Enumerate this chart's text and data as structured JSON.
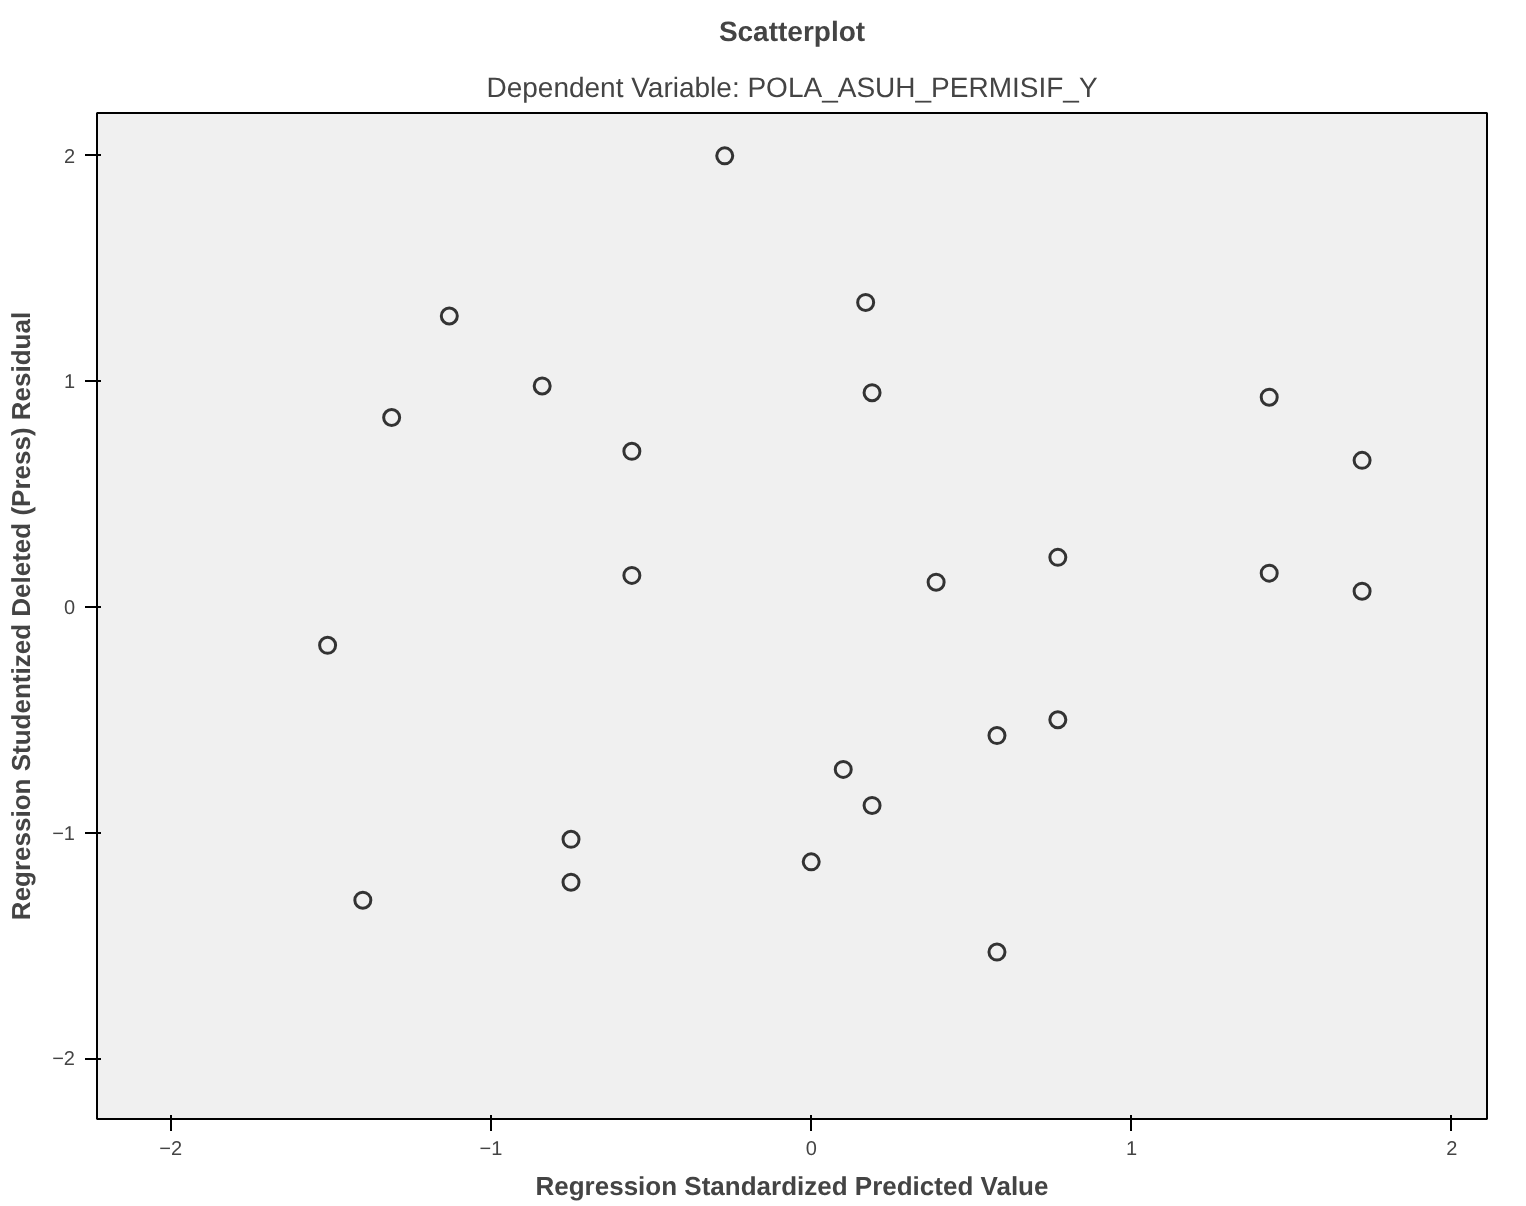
{
  "chart_data": {
    "type": "scatter",
    "title": "Scatterplot",
    "subtitle": "Dependent Variable: POLA_ASUH_PERMISIF_Y",
    "xlabel": "Regression Standardized Predicted Value",
    "ylabel": "Regression Studentized Deleted (Press) Residual",
    "x": [
      -0.27,
      -1.13,
      0.17,
      -1.31,
      -0.84,
      -0.56,
      0.19,
      1.43,
      1.72,
      -0.56,
      0.39,
      0.77,
      1.43,
      1.72,
      -1.51,
      0.58,
      0.77,
      0.1,
      0.19,
      -0.75,
      -0.75,
      0.0,
      -1.4,
      0.58
    ],
    "values": [
      2.0,
      1.29,
      1.35,
      0.84,
      0.98,
      0.69,
      0.95,
      0.93,
      0.65,
      0.14,
      0.11,
      0.22,
      0.15,
      0.07,
      -0.17,
      -0.57,
      -0.5,
      -0.72,
      -0.88,
      -1.03,
      -1.22,
      -1.13,
      -1.3,
      -1.53
    ],
    "color": "#333333",
    "marker": "circle",
    "grid": false,
    "xlim": [
      -2.23,
      2.11
    ],
    "ylim": [
      -2.27,
      2.19
    ],
    "xticks": [
      -2,
      -1,
      0,
      1,
      2
    ],
    "yticks": [
      -2,
      -1,
      0,
      1,
      2
    ]
  }
}
